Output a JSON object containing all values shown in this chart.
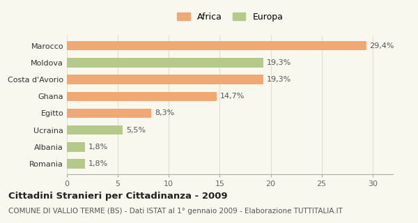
{
  "categories": [
    "Marocco",
    "Moldova",
    "Costa d'Avorio",
    "Ghana",
    "Egitto",
    "Ucraina",
    "Albania",
    "Romania"
  ],
  "values": [
    29.4,
    19.3,
    19.3,
    14.7,
    8.3,
    5.5,
    1.8,
    1.8
  ],
  "labels": [
    "29,4%",
    "19,3%",
    "19,3%",
    "14,7%",
    "8,3%",
    "5,5%",
    "1,8%",
    "1,8%"
  ],
  "colors": [
    "#f0a875",
    "#b5c98a",
    "#f0a875",
    "#f0a875",
    "#f0a875",
    "#b5c98a",
    "#b5c98a",
    "#b5c98a"
  ],
  "africa_color": "#f0a875",
  "europa_color": "#b5c98a",
  "xlim": [
    0,
    32
  ],
  "xticks": [
    0,
    5,
    10,
    15,
    20,
    25,
    30
  ],
  "title": "Cittadini Stranieri per Cittadinanza - 2009",
  "subtitle": "COMUNE DI VALLIO TERME (BS) - Dati ISTAT al 1° gennaio 2009 - Elaborazione TUTTITALIA.IT",
  "title_fontsize": 9.5,
  "subtitle_fontsize": 7.5,
  "bar_height": 0.55,
  "background_color": "#f8f8ee",
  "grid_color": "#e0e0d0",
  "label_fontsize": 8,
  "ytick_fontsize": 8,
  "xtick_fontsize": 8
}
